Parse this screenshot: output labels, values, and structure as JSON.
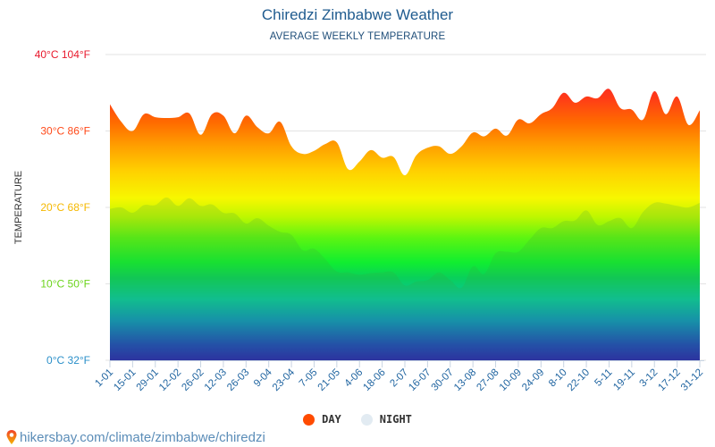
{
  "header": {
    "title": "Chiredzi Zimbabwe Weather",
    "subtitle": "AVERAGE WEEKLY TEMPERATURE"
  },
  "footer": {
    "pin_icon": "map-pin-icon",
    "url": "hikersbay.com/climate/zimbabwe/chiredzi"
  },
  "chart_data": {
    "type": "area",
    "title": "Chiredzi Zimbabwe Weather",
    "subtitle": "AVERAGE WEEKLY TEMPERATURE",
    "xlabel": "",
    "ylabel": "TEMPERATURE",
    "ylim": [
      0,
      40
    ],
    "grid": true,
    "legend_position": "bottom-center",
    "y_ticks": [
      {
        "value": 0,
        "label": "0°C 32°F",
        "color": "#2a8fc9"
      },
      {
        "value": 10,
        "label": "10°C 50°F",
        "color": "#6cd41c"
      },
      {
        "value": 20,
        "label": "20°C 68°F",
        "color": "#f5b800"
      },
      {
        "value": 30,
        "label": "30°C 86°F",
        "color": "#ff4a1a"
      },
      {
        "value": 40,
        "label": "40°C 104°F",
        "color": "#e8192c"
      }
    ],
    "x_tick_labels": [
      "1-01",
      "15-01",
      "29-01",
      "12-02",
      "26-02",
      "12-03",
      "26-03",
      "9-04",
      "23-04",
      "7-05",
      "21-05",
      "4-06",
      "18-06",
      "2-07",
      "16-07",
      "30-07",
      "13-08",
      "27-08",
      "10-09",
      "24-09",
      "8-10",
      "22-10",
      "5-11",
      "19-11",
      "3-12",
      "17-12",
      "31-12"
    ],
    "x_week_count": 53,
    "series": [
      {
        "name": "DAY",
        "legend_color": "#ff4b00",
        "values": [
          33.5,
          31.2,
          30,
          32.2,
          31.8,
          31.7,
          31.8,
          32.3,
          29.5,
          32.2,
          32,
          29.7,
          32,
          30.5,
          29.7,
          31.2,
          28,
          27,
          27.4,
          28.3,
          28.5,
          25,
          26,
          27.5,
          26.5,
          26.6,
          24.2,
          26.8,
          27.8,
          28,
          27,
          28,
          29.8,
          29.3,
          30.3,
          29.4,
          31.5,
          31,
          32.2,
          33,
          35,
          33.7,
          34.5,
          34.3,
          35.5,
          33,
          32.8,
          31.5,
          35.2,
          32.2,
          34.5,
          30.8,
          32.7
        ]
      },
      {
        "name": "NIGHT",
        "legend_color": "#e2ebf2",
        "values": [
          19.8,
          20,
          19.3,
          20.3,
          20.3,
          21.3,
          20.2,
          21.2,
          20.2,
          20.4,
          19.3,
          19.2,
          17.9,
          18.6,
          17.6,
          16.8,
          16.4,
          14.4,
          14.6,
          13.2,
          11.6,
          11.5,
          11.2,
          11.4,
          11.5,
          11.5,
          9.8,
          10.3,
          10.5,
          11.5,
          10.5,
          9.5,
          12.3,
          11.3,
          14,
          14.2,
          14.2,
          15.8,
          17.3,
          17.3,
          18.2,
          18.3,
          19.6,
          17.7,
          18.2,
          18.6,
          17.3,
          19.4,
          20.6,
          20.5,
          20.2,
          20,
          20.6
        ]
      }
    ]
  }
}
